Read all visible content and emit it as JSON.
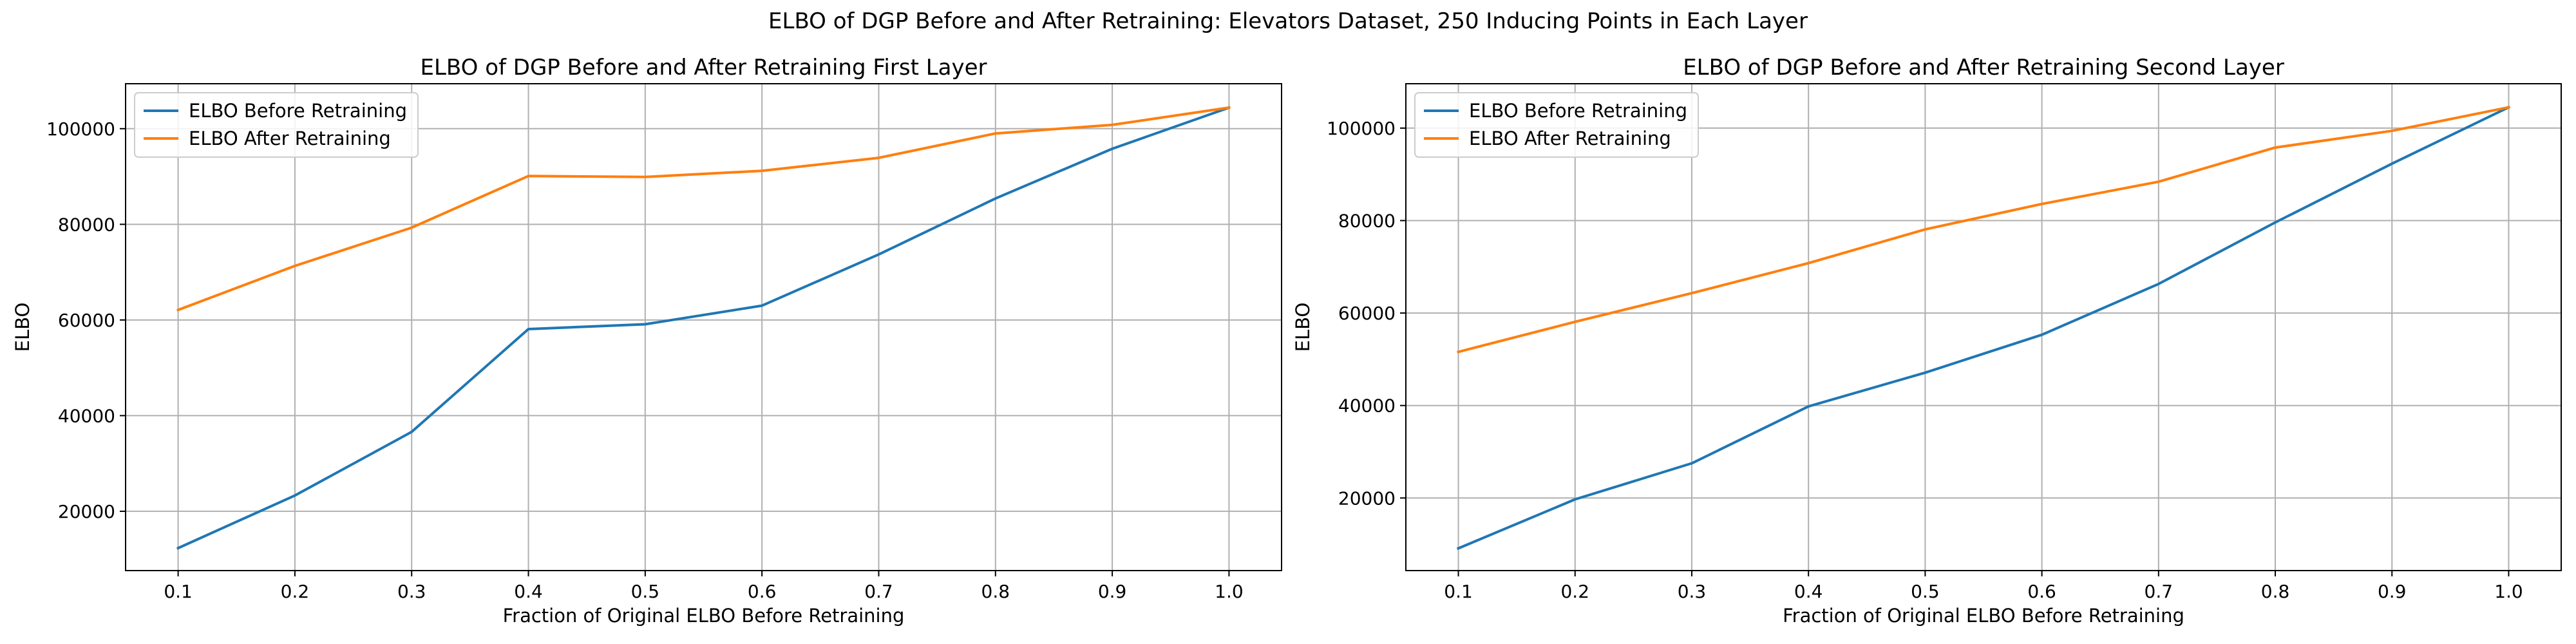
{
  "figure": {
    "suptitle": "ELBO of DGP Before and After Retraining: Elevators Dataset, 250 Inducing Points in Each Layer"
  },
  "colors": {
    "before": "#1f77b4",
    "after": "#ff7f0e",
    "grid": "#b0b0b0",
    "axis": "#000000"
  },
  "chart_data": [
    {
      "type": "line",
      "title": "ELBO of DGP Before and After Retraining First Layer",
      "xlabel": "Fraction of Original ELBO Before Retraining",
      "ylabel": "ELBO",
      "x": [
        0.1,
        0.2,
        0.3,
        0.4,
        0.5,
        0.6,
        0.7,
        0.8,
        0.9,
        1.0
      ],
      "xticks": [
        "0.1",
        "0.2",
        "0.3",
        "0.4",
        "0.5",
        "0.6",
        "0.7",
        "0.8",
        "0.9",
        "1.0"
      ],
      "yticks": [
        20000,
        40000,
        60000,
        80000,
        100000
      ],
      "ytick_labels": [
        "20000",
        "40000",
        "60000",
        "80000",
        "100000"
      ],
      "xlim": [
        0.055,
        1.045
      ],
      "ylim": [
        7600,
        109400
      ],
      "grid": true,
      "legend_position": "top-left",
      "series": [
        {
          "name": "ELBO Before Retraining",
          "color_key": "before",
          "values": [
            12300,
            23300,
            36600,
            58100,
            59100,
            63000,
            73700,
            85400,
            95800,
            104400
          ]
        },
        {
          "name": "ELBO After Retraining",
          "color_key": "after",
          "values": [
            62100,
            71300,
            79300,
            90100,
            89900,
            91200,
            93900,
            99000,
            100800,
            104400
          ]
        }
      ]
    },
    {
      "type": "line",
      "title": "ELBO of DGP Before and After Retraining Second Layer",
      "xlabel": "Fraction of Original ELBO Before Retraining",
      "ylabel": "ELBO",
      "x": [
        0.1,
        0.2,
        0.3,
        0.4,
        0.5,
        0.6,
        0.7,
        0.8,
        0.9,
        1.0
      ],
      "xticks": [
        "0.1",
        "0.2",
        "0.3",
        "0.4",
        "0.5",
        "0.6",
        "0.7",
        "0.8",
        "0.9",
        "1.0"
      ],
      "yticks": [
        20000,
        40000,
        60000,
        80000,
        100000
      ],
      "ytick_labels": [
        "20000",
        "40000",
        "60000",
        "80000",
        "100000"
      ],
      "xlim": [
        0.055,
        1.045
      ],
      "ylim": [
        4300,
        109600
      ],
      "grid": true,
      "legend_position": "top-left",
      "series": [
        {
          "name": "ELBO Before Retraining",
          "color_key": "before",
          "values": [
            9100,
            19700,
            27500,
            39800,
            47100,
            55300,
            66300,
            79600,
            92300,
            104500
          ]
        },
        {
          "name": "ELBO After Retraining",
          "color_key": "after",
          "values": [
            51600,
            58100,
            64300,
            70800,
            78100,
            83600,
            88400,
            95800,
            99400,
            104500
          ]
        }
      ]
    }
  ]
}
